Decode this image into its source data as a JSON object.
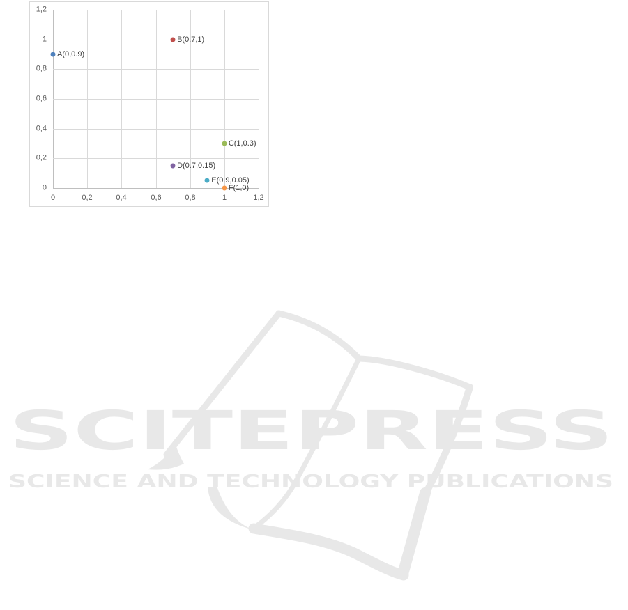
{
  "chart_data": {
    "type": "scatter",
    "title": "",
    "xlabel": "",
    "ylabel": "",
    "xlim": [
      0,
      1.2
    ],
    "ylim": [
      0,
      1.2
    ],
    "grid": true,
    "legend": false,
    "x_tick_labels": [
      "0",
      "0,2",
      "0,4",
      "0,6",
      "0,8",
      "1",
      "1,2"
    ],
    "y_tick_labels": [
      "0",
      "0,2",
      "0,4",
      "0,6",
      "0,8",
      "1",
      "1,2"
    ],
    "points": [
      {
        "label": "A(0,0.9)",
        "x": 0,
        "y": 0.9,
        "color": "#4F81BD"
      },
      {
        "label": "B(0.7,1)",
        "x": 0.7,
        "y": 1,
        "color": "#C0504D"
      },
      {
        "label": "C(1,0.3)",
        "x": 1,
        "y": 0.3,
        "color": "#9BBB59"
      },
      {
        "label": "D(0.7,0.15)",
        "x": 0.7,
        "y": 0.15,
        "color": "#8064A2"
      },
      {
        "label": "E(0.9,0.05)",
        "x": 0.9,
        "y": 0.05,
        "color": "#4BACC6"
      },
      {
        "label": "F(1,0)",
        "x": 1,
        "y": 0,
        "color": "#F79646"
      }
    ]
  },
  "colors": {
    "chart_border": "#d9d9d9",
    "gridline": "#d9d9d9",
    "axis_line": "#bfbfbf",
    "tick_label": "#595959",
    "point_label": "#404040",
    "watermark": "#e8e8e8"
  },
  "watermark": {
    "logo_text": "SCITEPRESS",
    "tagline": "SCIENCE AND TECHNOLOGY PUBLICATIONS"
  }
}
